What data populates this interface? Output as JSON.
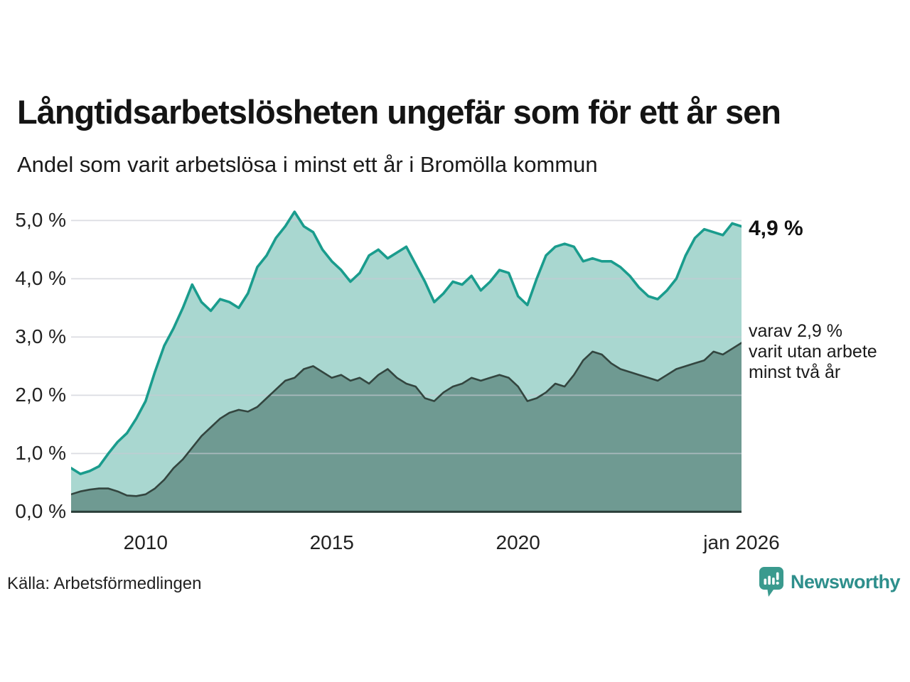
{
  "header": {
    "title": "Långtidsarbetslösheten ungefär som för ett år sen",
    "subtitle": "Andel som varit arbetslösa i minst ett år i Bromölla kommun"
  },
  "annotations": {
    "latest_value": "4,9 %",
    "note_lines": [
      "varav 2,9 %",
      "varit utan arbete",
      "minst två år"
    ]
  },
  "footer": {
    "source": "Källa: Arbetsförmedlingen",
    "brand": "Newsworthy"
  },
  "colors": {
    "accent_teal_line": "#1a9c8d",
    "light_area_fill": "#a9d7d0",
    "dark_area_fill": "#6f9a92",
    "dark_line": "#33453f",
    "gridline": "#c9cad4",
    "baseline": "#2b3f3a",
    "text": "#1a1a1a",
    "brand_teal": "#2e8f8c",
    "logo_mark": "#3a9a8e"
  },
  "chart_data": {
    "type": "area",
    "title": "Långtidsarbetslösheten ungefär som för ett år sen",
    "subtitle": "Andel som varit arbetslösa i minst ett år i Bromölla kommun",
    "unit": "percent",
    "grid": true,
    "legend": "none — series labelled directly at right end of lines",
    "x_start_year": 2008,
    "x_end_year": 2026,
    "x_step_years": 0.25,
    "x_tick_labels": [
      {
        "label": "2010",
        "year": 2010
      },
      {
        "label": "2015",
        "year": 2015
      },
      {
        "label": "2020",
        "year": 2020
      },
      {
        "label": "jan 2026",
        "year": 2026
      }
    ],
    "y_ticks": [
      {
        "value": 0,
        "label": "0,0 %"
      },
      {
        "value": 1,
        "label": "1,0 %"
      },
      {
        "value": 2,
        "label": "2,0 %"
      },
      {
        "value": 3,
        "label": "3,0 %"
      },
      {
        "value": 4,
        "label": "4,0 %"
      },
      {
        "value": 5,
        "label": "5,0 %"
      }
    ],
    "ylim": [
      0,
      5.3
    ],
    "series": [
      {
        "name": "Andel arbetslösa minst ett år",
        "end_label": "4,9 %",
        "color": "#1a9c8d",
        "fill": "#a9d7d0",
        "stroke_width": 3.6,
        "values": [
          0.75,
          0.65,
          0.7,
          0.78,
          1.0,
          1.2,
          1.35,
          1.6,
          1.9,
          2.4,
          2.85,
          3.15,
          3.5,
          3.9,
          3.6,
          3.45,
          3.65,
          3.6,
          3.5,
          3.75,
          4.2,
          4.4,
          4.7,
          4.9,
          5.15,
          4.9,
          4.8,
          4.5,
          4.3,
          4.15,
          3.95,
          4.1,
          4.4,
          4.5,
          4.35,
          4.45,
          4.55,
          4.25,
          3.95,
          3.6,
          3.75,
          3.95,
          3.9,
          4.05,
          3.8,
          3.95,
          4.15,
          4.1,
          3.7,
          3.55,
          4.0,
          4.4,
          4.55,
          4.6,
          4.55,
          4.3,
          4.35,
          4.3,
          4.3,
          4.2,
          4.05,
          3.85,
          3.7,
          3.65,
          3.8,
          4.0,
          4.4,
          4.7,
          4.85,
          4.8,
          4.75,
          4.95,
          4.9
        ]
      },
      {
        "name": "Varav utan arbete minst två år",
        "end_label": "varav 2,9 % varit utan arbete minst två år",
        "color": "#33453f",
        "fill": "#6f9a92",
        "stroke_width": 2.6,
        "values": [
          0.3,
          0.35,
          0.38,
          0.4,
          0.4,
          0.35,
          0.28,
          0.27,
          0.3,
          0.4,
          0.55,
          0.75,
          0.9,
          1.1,
          1.3,
          1.45,
          1.6,
          1.7,
          1.75,
          1.72,
          1.8,
          1.95,
          2.1,
          2.25,
          2.3,
          2.45,
          2.5,
          2.4,
          2.3,
          2.35,
          2.25,
          2.3,
          2.2,
          2.35,
          2.45,
          2.3,
          2.2,
          2.15,
          1.95,
          1.9,
          2.05,
          2.15,
          2.2,
          2.3,
          2.25,
          2.3,
          2.35,
          2.3,
          2.15,
          1.9,
          1.95,
          2.05,
          2.2,
          2.15,
          2.35,
          2.6,
          2.75,
          2.7,
          2.55,
          2.45,
          2.4,
          2.35,
          2.3,
          2.25,
          2.35,
          2.45,
          2.5,
          2.55,
          2.6,
          2.75,
          2.7,
          2.8,
          2.9
        ]
      }
    ]
  }
}
